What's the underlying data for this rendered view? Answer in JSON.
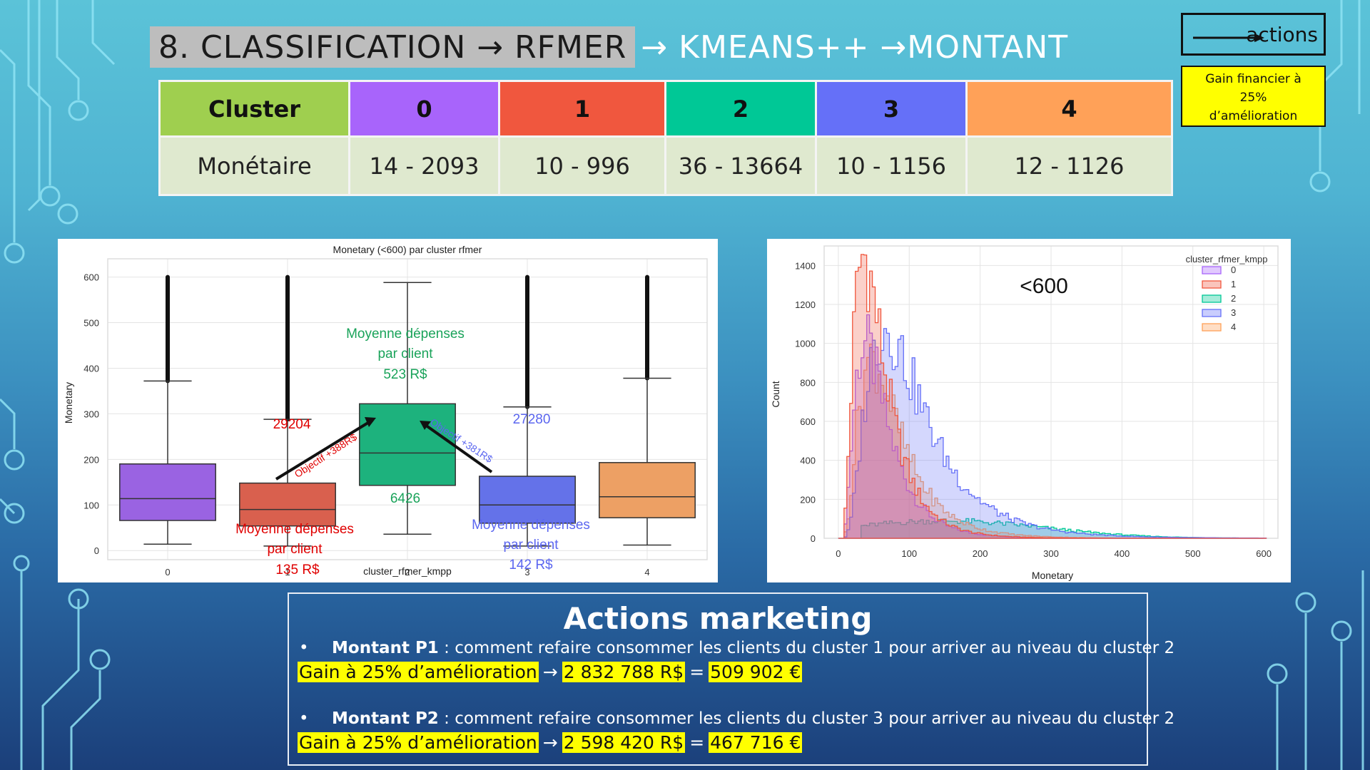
{
  "colors": {
    "cluster_header": "#9fcf4f",
    "c0": "#a864fb",
    "c1": "#f0573e",
    "c2": "#00c896",
    "c3": "#6570f8",
    "c4": "#ffa158",
    "box0": "#9a63e2",
    "box1": "#d9604e",
    "box2": "#1db27d",
    "box3": "#6472e9",
    "box4": "#eda064"
  },
  "title": {
    "boxed": "8. CLASSIFICATION → RFMER",
    "rest": "→ KMEANS++ →MONTANT"
  },
  "legend": {
    "actions_label": "actions",
    "gain_text_1": "Gain financier à",
    "gain_text_2": "25%",
    "gain_text_3": "d’amélioration"
  },
  "table": {
    "header_label": "Cluster",
    "row_label": "Monétaire",
    "clusters": [
      "0",
      "1",
      "2",
      "3",
      "4"
    ],
    "ranges": [
      "14 - 2093",
      "10 - 996",
      "36 - 13664",
      "10 - 1156",
      "12 - 1126"
    ]
  },
  "boxplot": {
    "title": "Monetary (<600) par cluster rfmer",
    "xlabel": "cluster_rfmer_kmpp",
    "ylabel": "Monetary",
    "annotations": {
      "c2_text_1": "Moyenne dépenses",
      "c2_text_2": "par client",
      "c2_text_3": "523 R$",
      "c2_count": "6426",
      "c1_count": "29204",
      "c1_text_1": "Moyenne dépenses",
      "c1_text_2": "par client",
      "c1_text_3": "135 R$",
      "c3_count": "27280",
      "c3_text_1": "Moyenne dépenses",
      "c3_text_2": "par client",
      "c3_text_3": "142 R$",
      "arrow1_label": "Objectif +388R$",
      "arrow2_label": "Objectif +381R$"
    }
  },
  "histogram": {
    "legend_title": "cluster_rfmer_kmpp",
    "annotation": "<600",
    "xlabel": "Monetary",
    "ylabel": "Count"
  },
  "chart_data": [
    {
      "type": "box",
      "title": "Monetary (<600) par cluster rfmer",
      "xlabel": "cluster_rfmer_kmpp",
      "ylabel": "Monetary",
      "categories": [
        "0",
        "1",
        "2",
        "3",
        "4"
      ],
      "ylim": [
        -20,
        640
      ],
      "yticks": [
        0,
        100,
        200,
        300,
        400,
        500,
        600
      ],
      "boxes": [
        {
          "name": "0",
          "whisker_low": 14,
          "q1": 66,
          "median": 114,
          "q3": 190,
          "whisker_high": 372,
          "outliers_to": 600
        },
        {
          "name": "1",
          "whisker_low": 10,
          "q1": 54,
          "median": 90,
          "q3": 148,
          "whisker_high": 288,
          "outliers_to": 600
        },
        {
          "name": "2",
          "whisker_low": 36,
          "q1": 143,
          "median": 214,
          "q3": 322,
          "whisker_high": 588,
          "outliers_to": 588
        },
        {
          "name": "3",
          "whisker_low": 10,
          "q1": 60,
          "median": 100,
          "q3": 163,
          "whisker_high": 315,
          "outliers_to": 600
        },
        {
          "name": "4",
          "whisker_low": 12,
          "q1": 72,
          "median": 118,
          "q3": 193,
          "whisker_high": 378,
          "outliers_to": 600
        }
      ],
      "grid": true
    },
    {
      "type": "histogram",
      "xlabel": "Monetary",
      "ylabel": "Count",
      "xlim": [
        -20,
        620
      ],
      "ylim": [
        0,
        1500
      ],
      "xticks": [
        0,
        100,
        200,
        300,
        400,
        500,
        600
      ],
      "yticks": [
        0,
        200,
        400,
        600,
        800,
        1000,
        1200,
        1400
      ],
      "legend_title": "cluster_rfmer_kmpp",
      "legend_position": "top-right",
      "series": [
        {
          "name": "0",
          "peak_x": 40,
          "peak": 1000
        },
        {
          "name": "1",
          "peak_x": 38,
          "peak": 1450
        },
        {
          "name": "2",
          "peak_x": 150,
          "peak": 90
        },
        {
          "name": "3",
          "peak_x": 70,
          "peak": 1080
        },
        {
          "name": "4",
          "peak_x": 50,
          "peak": 920
        }
      ],
      "grid": true
    }
  ],
  "actions": {
    "title": "Actions marketing",
    "p1_bold": "Montant P1",
    "p1_text": " : comment refaire consommer les clients du cluster 1  pour arriver au niveau du cluster 2",
    "p1_gain_label": "Gain à 25% d’amélioration",
    "p1_amount": "2 832 788 R$",
    "p1_euro": "509 902 €",
    "p2_bold": "Montant P2",
    "p2_text": " : comment refaire consommer les clients du cluster 3  pour arriver au niveau du cluster 2",
    "p2_gain_label": "Gain à 25% d’amélioration",
    "p2_amount": "2 598 420 R$",
    "p2_euro": "467 716 €",
    "bullet": "•",
    "arrow": "→",
    "equals": "="
  }
}
